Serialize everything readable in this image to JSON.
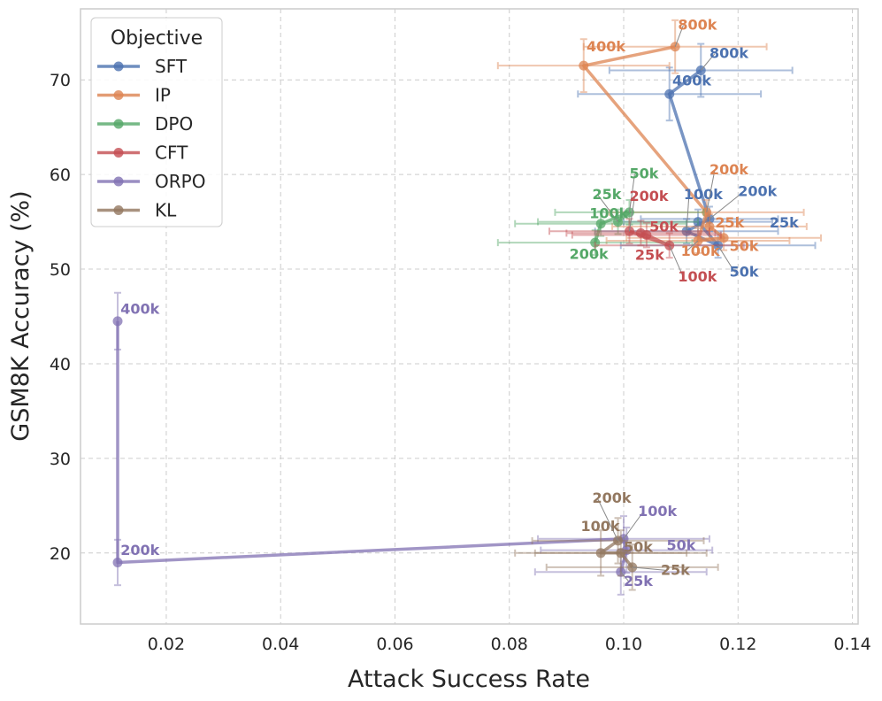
{
  "chart_data": {
    "type": "scatter",
    "xlabel": "Attack Success Rate",
    "ylabel": "GSM8K Accuracy (%)",
    "xlim": [
      0.005,
      0.141
    ],
    "ylim": [
      12.5,
      77.5
    ],
    "xticks": [
      0.02,
      0.04,
      0.06,
      0.08,
      0.1,
      0.12,
      0.14
    ],
    "xtick_labels": [
      "0.02",
      "0.04",
      "0.06",
      "0.08",
      "0.10",
      "0.12",
      "0.14"
    ],
    "yticks": [
      20,
      30,
      40,
      50,
      60,
      70
    ],
    "ytick_labels": [
      "20",
      "30",
      "40",
      "50",
      "60",
      "70"
    ],
    "grid": true,
    "legend": {
      "title": "Objective",
      "position": "top-left"
    },
    "series": [
      {
        "name": "SFT",
        "color": "#4c72b0",
        "points": [
          {
            "label": "25k",
            "x": 0.113,
            "y": 55.0,
            "xerr": 0.013,
            "yerr": 1.3,
            "lx": 0.1255,
            "ly": 54.4
          },
          {
            "label": "50k",
            "x": 0.1165,
            "y": 52.5,
            "xerr": 0.017,
            "yerr": 1.3,
            "lx": 0.1185,
            "ly": 49.2,
            "arrow": true
          },
          {
            "label": "100k",
            "x": 0.111,
            "y": 54.0,
            "xerr": 0.016,
            "yerr": 1.3,
            "lx": 0.1105,
            "ly": 57.4,
            "arrow": true
          },
          {
            "label": "200k",
            "x": 0.115,
            "y": 55.3,
            "xerr": 0.012,
            "yerr": 1.3,
            "lx": 0.12,
            "ly": 57.7,
            "arrow": true
          },
          {
            "label": "400k",
            "x": 0.108,
            "y": 68.5,
            "xerr": 0.016,
            "yerr": 2.8,
            "lx": 0.1085,
            "ly": 69.4
          },
          {
            "label": "800k",
            "x": 0.1135,
            "y": 71.0,
            "xerr": 0.016,
            "yerr": 2.8,
            "lx": 0.115,
            "ly": 72.3,
            "arrow": true
          }
        ]
      },
      {
        "name": "IP",
        "color": "#dd8452",
        "points": [
          {
            "label": "25k",
            "x": 0.115,
            "y": 54.5,
            "xerr": 0.017,
            "yerr": 1.3,
            "lx": 0.116,
            "ly": 54.4
          },
          {
            "label": "50k",
            "x": 0.1175,
            "y": 53.3,
            "xerr": 0.017,
            "yerr": 1.3,
            "lx": 0.1185,
            "ly": 51.9
          },
          {
            "label": "100k",
            "x": 0.113,
            "y": 53.0,
            "xerr": 0.016,
            "yerr": 1.3,
            "lx": 0.11,
            "ly": 51.4,
            "arrow": true
          },
          {
            "label": "200k",
            "x": 0.1145,
            "y": 56.0,
            "xerr": 0.017,
            "yerr": 1.3,
            "lx": 0.115,
            "ly": 60.0,
            "arrow": true
          },
          {
            "label": "400k",
            "x": 0.093,
            "y": 71.5,
            "xerr": 0.015,
            "yerr": 2.8,
            "lx": 0.0935,
            "ly": 73.0
          },
          {
            "label": "800k",
            "x": 0.109,
            "y": 73.5,
            "xerr": 0.016,
            "yerr": 2.8,
            "lx": 0.1095,
            "ly": 75.3,
            "arrow": true
          }
        ]
      },
      {
        "name": "DPO",
        "color": "#55a868",
        "points": [
          {
            "label": "25k",
            "x": 0.099,
            "y": 55.0,
            "xerr": 0.014,
            "yerr": 1.3,
            "lx": 0.0945,
            "ly": 57.4,
            "arrow": true
          },
          {
            "label": "50k",
            "x": 0.101,
            "y": 56.0,
            "xerr": 0.013,
            "yerr": 1.3,
            "lx": 0.101,
            "ly": 59.6,
            "arrow": true
          },
          {
            "label": "100k",
            "x": 0.096,
            "y": 54.8,
            "xerr": 0.015,
            "yerr": 1.3,
            "lx": 0.094,
            "ly": 55.4
          },
          {
            "label": "200k",
            "x": 0.095,
            "y": 52.8,
            "xerr": 0.017,
            "yerr": 1.3,
            "lx": 0.0905,
            "ly": 51.1
          }
        ]
      },
      {
        "name": "CFT",
        "color": "#c44e52",
        "points": [
          {
            "label": "25k",
            "x": 0.103,
            "y": 53.8,
            "xerr": 0.013,
            "yerr": 1.3,
            "lx": 0.102,
            "ly": 51.0
          },
          {
            "label": "50k",
            "x": 0.104,
            "y": 53.6,
            "xerr": 0.013,
            "yerr": 1.3,
            "lx": 0.1045,
            "ly": 54.0
          },
          {
            "label": "100k",
            "x": 0.108,
            "y": 52.5,
            "xerr": 0.013,
            "yerr": 1.3,
            "lx": 0.1095,
            "ly": 48.7,
            "arrow": true
          },
          {
            "label": "200k",
            "x": 0.101,
            "y": 54.0,
            "xerr": 0.014,
            "yerr": 1.3,
            "lx": 0.101,
            "ly": 57.2,
            "arrow": true
          }
        ]
      },
      {
        "name": "ORPO",
        "color": "#8172b3",
        "points": [
          {
            "label": "25k",
            "x": 0.0995,
            "y": 18.0,
            "xerr": 0.015,
            "yerr": 2.4,
            "lx": 0.1,
            "ly": 16.5,
            "arrow": true
          },
          {
            "label": "50k",
            "x": 0.1005,
            "y": 20.3,
            "xerr": 0.015,
            "yerr": 2.4,
            "lx": 0.1075,
            "ly": 20.3
          },
          {
            "label": "100k",
            "x": 0.1,
            "y": 21.5,
            "xerr": 0.015,
            "yerr": 2.4,
            "lx": 0.1025,
            "ly": 23.9,
            "arrow": true
          },
          {
            "label": "200k",
            "x": 0.0115,
            "y": 19.0,
            "xerr": 0.0,
            "yerr": 2.4,
            "lx": 0.012,
            "ly": 19.8
          },
          {
            "label": "400k",
            "x": 0.0115,
            "y": 44.5,
            "xerr": 0.0,
            "yerr": 3.0,
            "lx": 0.012,
            "ly": 45.3
          }
        ]
      },
      {
        "name": "KL",
        "color": "#937860",
        "points": [
          {
            "label": "25k",
            "x": 0.1015,
            "y": 18.5,
            "xerr": 0.015,
            "yerr": 2.4,
            "lx": 0.1065,
            "ly": 17.7,
            "arrow": true
          },
          {
            "label": "50k",
            "x": 0.0995,
            "y": 20.0,
            "xerr": 0.015,
            "yerr": 2.4,
            "lx": 0.1,
            "ly": 20.1
          },
          {
            "label": "100k",
            "x": 0.096,
            "y": 20.0,
            "xerr": 0.015,
            "yerr": 2.4,
            "lx": 0.0925,
            "ly": 22.3
          },
          {
            "label": "200k",
            "x": 0.099,
            "y": 21.3,
            "xerr": 0.015,
            "yerr": 2.4,
            "lx": 0.0945,
            "ly": 25.3,
            "arrow": true
          }
        ]
      }
    ]
  }
}
